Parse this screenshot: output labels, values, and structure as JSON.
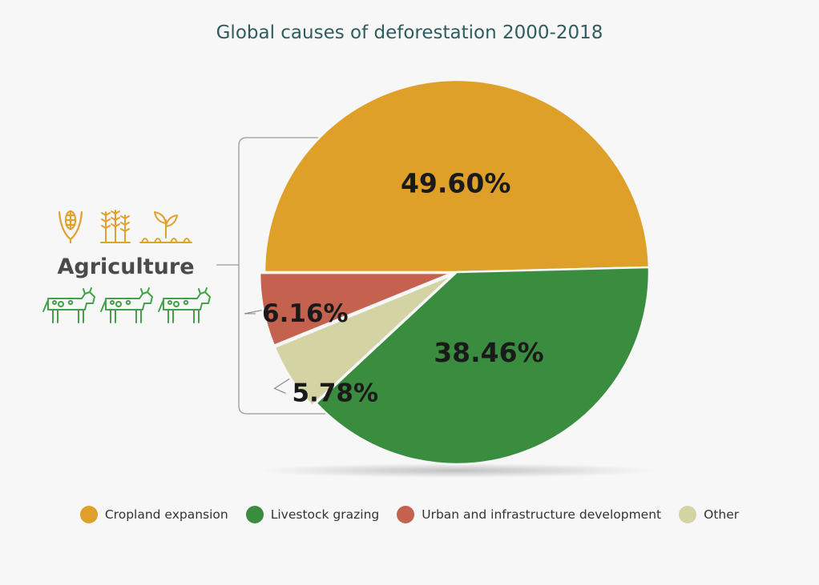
{
  "chart_data": {
    "type": "pie",
    "title": "Global causes of deforestation 2000-2018",
    "slices": [
      {
        "name": "Cropland expansion",
        "value": 49.6,
        "label": "49.60%",
        "color": "#dea028"
      },
      {
        "name": "Livestock grazing",
        "value": 38.46,
        "label": "38.46%",
        "color": "#3a8c3f"
      },
      {
        "name": "Other",
        "value": 5.78,
        "label": "5.78%",
        "color": "#d3d3a3"
      },
      {
        "name": "Urban and infrastructure development",
        "value": 6.16,
        "label": "6.16%",
        "color": "#c4614f"
      }
    ],
    "legend": [
      {
        "name": "Cropland expansion",
        "color": "#dea028"
      },
      {
        "name": "Livestock grazing",
        "color": "#3a8c3f"
      },
      {
        "name": "Urban and infrastructure development",
        "color": "#c4614f"
      },
      {
        "name": "Other",
        "color": "#d3d3a3"
      }
    ],
    "legend_position": "bottom",
    "group_annotation": {
      "label": "Agriculture",
      "crop_icons": [
        "corn-icon",
        "wheat-icon",
        "sprout-icon"
      ],
      "livestock_icons": [
        "cow-icon",
        "cow-icon",
        "cow-icon"
      ],
      "crop_icon_color": "#e0a12e",
      "livestock_icon_color": "#43a047"
    }
  }
}
